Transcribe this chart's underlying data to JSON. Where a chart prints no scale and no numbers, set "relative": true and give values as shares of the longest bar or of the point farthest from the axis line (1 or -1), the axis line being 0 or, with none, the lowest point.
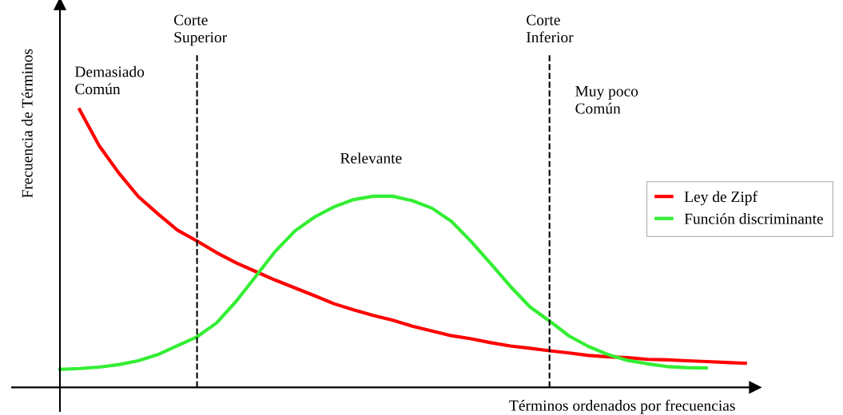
{
  "chart_data": {
    "type": "line",
    "relative": true,
    "xlabel": "Términos ordenados por frecuencias",
    "ylabel": "Frecuencia de Términos",
    "legend": "right",
    "marker": "none",
    "line_style": "solid",
    "categories": [
      null,
      null,
      null,
      null,
      null,
      null,
      null,
      null,
      null,
      null,
      null,
      null,
      null,
      null,
      null,
      null,
      null,
      null,
      null,
      null,
      null,
      null,
      null,
      null,
      null,
      null,
      null,
      null,
      null,
      null,
      null,
      null,
      null,
      null,
      null,
      null
    ],
    "series": [
      {
        "name": "Ley de Zipf",
        "color": "#ff0000",
        "values": [
          null,
          1.0,
          0.87,
          0.772,
          0.687,
          0.625,
          0.566,
          0.527,
          0.485,
          0.448,
          0.417,
          0.386,
          0.358,
          0.33,
          0.301,
          0.279,
          0.259,
          0.242,
          0.22,
          0.203,
          0.186,
          0.175,
          0.161,
          0.149,
          0.141,
          0.132,
          0.124,
          0.115,
          0.11,
          0.107,
          0.101,
          0.099,
          0.096,
          0.093,
          0.09,
          0.087
        ]
      },
      {
        "name": "Función discriminante",
        "color": "#33ee33",
        "values": [
          0.065,
          0.068,
          0.073,
          0.082,
          0.096,
          0.118,
          0.15,
          0.182,
          0.232,
          0.31,
          0.4,
          0.49,
          0.563,
          0.613,
          0.65,
          0.676,
          0.688,
          0.688,
          0.672,
          0.645,
          0.597,
          0.525,
          0.445,
          0.364,
          0.29,
          0.239,
          0.185,
          0.147,
          0.118,
          0.097,
          0.085,
          0.075,
          0.071,
          0.07,
          null,
          null
        ]
      }
    ],
    "annotations": [
      "Demasiado\nComún",
      "Relevante",
      "Muy poco\nComún",
      "Corte\nSuperior",
      "Corte\nInferior"
    ]
  }
}
